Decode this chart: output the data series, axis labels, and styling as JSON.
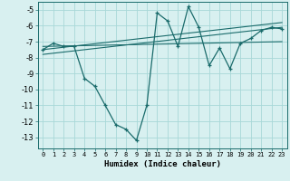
{
  "xlabel": "Humidex (Indice chaleur)",
  "xlim": [
    -0.5,
    23.5
  ],
  "ylim": [
    -13.7,
    -4.5
  ],
  "yticks": [
    -13,
    -12,
    -11,
    -10,
    -9,
    -8,
    -7,
    -6,
    -5
  ],
  "xticks": [
    0,
    1,
    2,
    3,
    4,
    5,
    6,
    7,
    8,
    9,
    10,
    11,
    12,
    13,
    14,
    15,
    16,
    17,
    18,
    19,
    20,
    21,
    22,
    23
  ],
  "xtick_labels": [
    "0",
    "1",
    "2",
    "3",
    "4",
    "5",
    "6",
    "7",
    "8",
    "9",
    "10",
    "11",
    "12",
    "13",
    "14",
    "15",
    "16",
    "17",
    "18",
    "19",
    "20",
    "21",
    "22",
    "23"
  ],
  "main_line_color": "#1a6b6b",
  "bg_color": "#d8f0f0",
  "grid_color": "#a8d8d8",
  "main_data_x": [
    0,
    1,
    2,
    3,
    4,
    5,
    6,
    7,
    8,
    9,
    10,
    11,
    12,
    13,
    14,
    15,
    16,
    17,
    18,
    19,
    20,
    21,
    22,
    23
  ],
  "main_data_y": [
    -7.5,
    -7.1,
    -7.3,
    -7.3,
    -9.3,
    -9.8,
    -11.0,
    -12.2,
    -12.5,
    -13.2,
    -11.0,
    -5.2,
    -5.7,
    -7.3,
    -4.8,
    -6.1,
    -8.5,
    -7.4,
    -8.7,
    -7.1,
    -6.8,
    -6.3,
    -6.1,
    -6.2
  ],
  "trend1_x": [
    0,
    23
  ],
  "trend1_y": [
    -7.3,
    -7.0
  ],
  "trend2_x": [
    0,
    23
  ],
  "trend2_y": [
    -7.5,
    -5.8
  ],
  "trend3_x": [
    0,
    23
  ],
  "trend3_y": [
    -7.8,
    -6.1
  ]
}
